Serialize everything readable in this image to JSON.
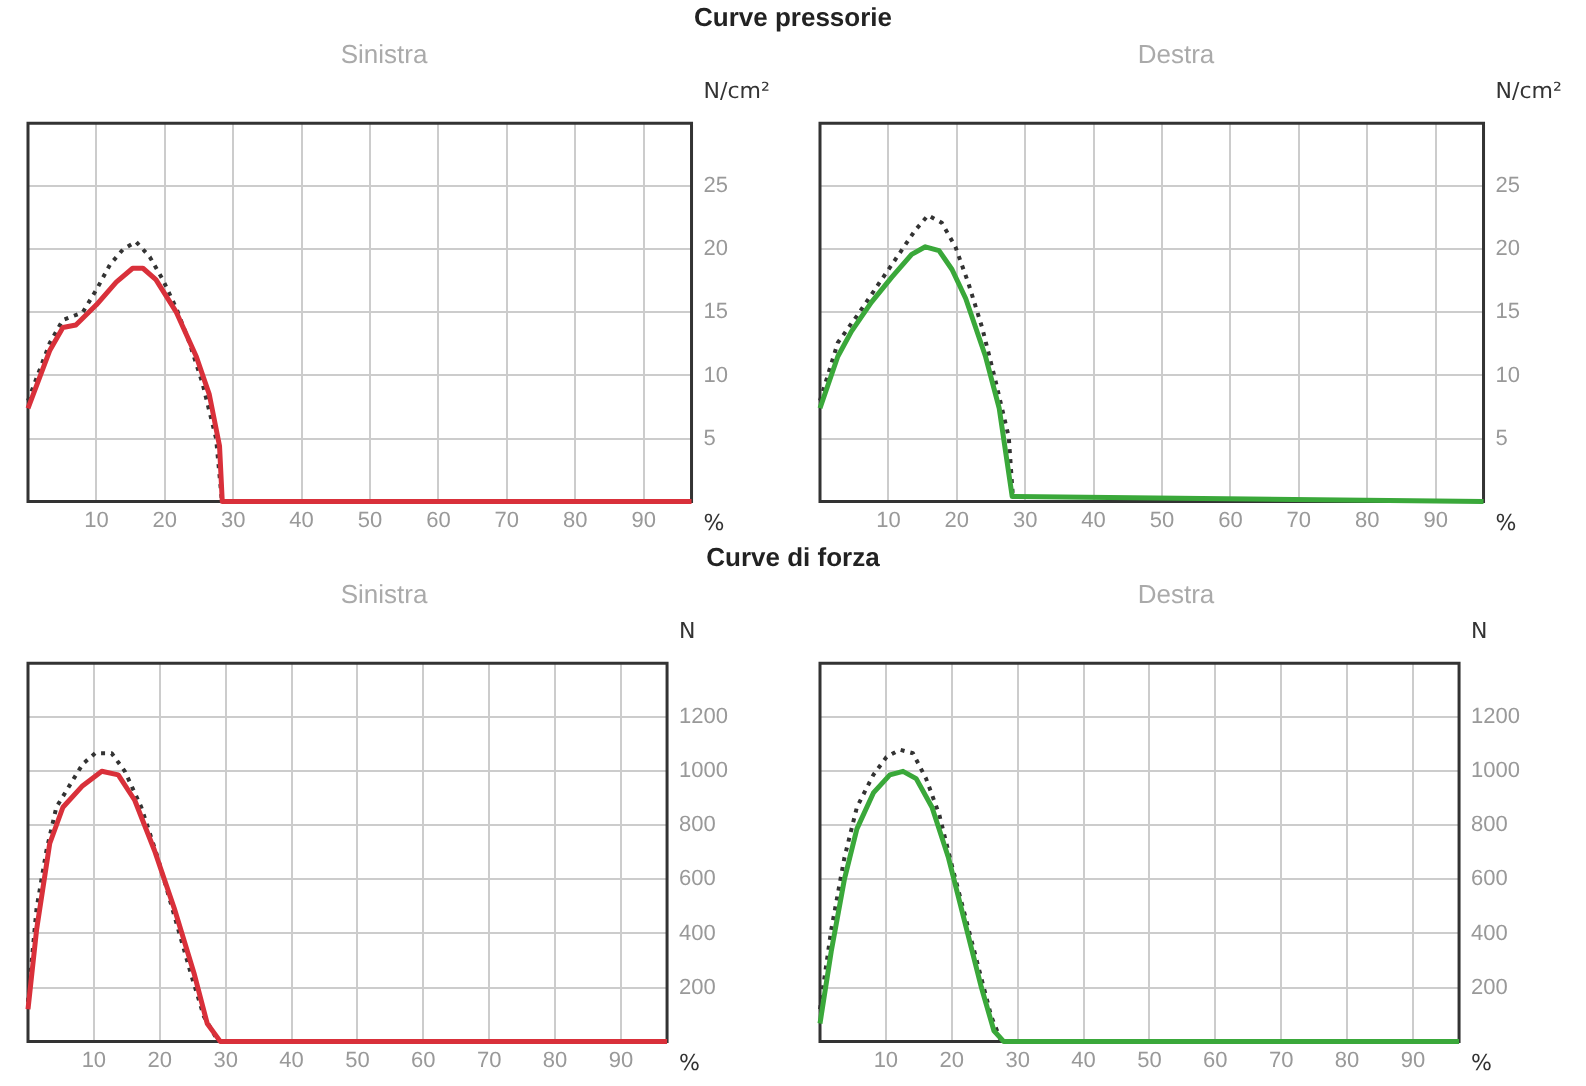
{
  "chart_data": [
    {
      "type": "line",
      "title": "Curve pressorie",
      "subtitle": "Sinistra",
      "xlabel": "%",
      "ylabel": "N/cm²",
      "xlim": [
        0,
        97
      ],
      "xticks": [
        10,
        20,
        30,
        40,
        50,
        60,
        70,
        80,
        90
      ],
      "ylim": [
        0,
        30
      ],
      "yticks": [
        5,
        10,
        15,
        20,
        25
      ],
      "grid": true,
      "legend": false,
      "marker": "none",
      "series": [
        {
          "color": "#d9303a",
          "line_style": "solid",
          "x": [
            0,
            3.2,
            5.1,
            7,
            10,
            12.9,
            15.3,
            16.8,
            18.7,
            21.7,
            24.6,
            26.5,
            28,
            28.4,
            97
          ],
          "values": [
            7.4,
            12,
            13.8,
            14,
            15.6,
            17.4,
            18.5,
            18.5,
            17.6,
            15,
            11.5,
            8.5,
            4.4,
            0,
            0
          ]
        },
        {
          "color": "#333333",
          "line_style": "dotted",
          "x": [
            0,
            3.2,
            5.1,
            8,
            10,
            12,
            13.9,
            15.8,
            17.8,
            19.7,
            21.7,
            23.6,
            25.5,
            27.5,
            28.3
          ],
          "values": [
            8,
            12.6,
            14.4,
            15,
            16.8,
            18.8,
            20,
            20.6,
            19.4,
            17.6,
            15.3,
            12.6,
            9.4,
            5,
            0.3
          ]
        }
      ]
    },
    {
      "type": "line",
      "subtitle": "Destra",
      "xlabel": "%",
      "ylabel": "N/cm²",
      "xlim": [
        0,
        97
      ],
      "xticks": [
        10,
        20,
        30,
        40,
        50,
        60,
        70,
        80,
        90
      ],
      "ylim": [
        0,
        30
      ],
      "yticks": [
        5,
        10,
        15,
        20,
        25
      ],
      "grid": true,
      "legend": false,
      "marker": "none",
      "series": [
        {
          "color": "#3aa83a",
          "line_style": "solid",
          "x": [
            0,
            2.6,
            4.6,
            7.5,
            10.5,
            13.4,
            15.4,
            17.4,
            19.3,
            21.3,
            24.2,
            26.2,
            28.1,
            97
          ],
          "values": [
            7.4,
            11.5,
            13.5,
            15.8,
            17.8,
            19.6,
            20.2,
            19.9,
            18.4,
            16.1,
            11.5,
            7.4,
            0.4,
            0
          ]
        },
        {
          "color": "#333333",
          "line_style": "dotted",
          "x": [
            0,
            2.6,
            5.5,
            8.5,
            11.4,
            13.9,
            15.8,
            17.8,
            19.8,
            21.7,
            23.7,
            25.6,
            27.6,
            28.2
          ],
          "values": [
            8,
            12.6,
            14.8,
            17.2,
            19.5,
            21.5,
            22.7,
            22.1,
            20.2,
            17.3,
            13.8,
            9.7,
            5.1,
            0.4
          ]
        }
      ]
    },
    {
      "type": "line",
      "title": "Curve di forza",
      "subtitle": "Sinistra",
      "xlabel": "%",
      "ylabel": "N",
      "xlim": [
        0,
        97
      ],
      "xticks": [
        10,
        20,
        30,
        40,
        50,
        60,
        70,
        80,
        90
      ],
      "ylim": [
        0,
        1400
      ],
      "yticks": [
        200,
        400,
        600,
        800,
        1000,
        1200
      ],
      "grid": true,
      "legend": false,
      "marker": "none",
      "series": [
        {
          "color": "#d9303a",
          "line_style": "solid",
          "x": [
            0,
            1.3,
            3.3,
            5.3,
            8.3,
            11.2,
            13.7,
            16.2,
            19.2,
            22.2,
            25.2,
            27.2,
            29.2,
            97
          ],
          "values": [
            120,
            413,
            733,
            867,
            947,
            1000,
            987,
            893,
            707,
            493,
            253,
            67,
            0,
            0
          ]
        },
        {
          "color": "#333333",
          "line_style": "dotted",
          "x": [
            0,
            1.3,
            2.8,
            4.3,
            6.3,
            8.3,
            10.2,
            12.7,
            14.7,
            17.2,
            19.7,
            22.2,
            24.7,
            26.7,
            28.7
          ],
          "values": [
            147,
            493,
            707,
            867,
            947,
            1027,
            1067,
            1067,
            1000,
            867,
            680,
            467,
            253,
            93,
            8
          ]
        }
      ]
    },
    {
      "type": "line",
      "subtitle": "Destra",
      "xlabel": "%",
      "ylabel": "N",
      "xlim": [
        0,
        97
      ],
      "xticks": [
        10,
        20,
        30,
        40,
        50,
        60,
        70,
        80,
        90
      ],
      "ylim": [
        0,
        1400
      ],
      "yticks": [
        200,
        400,
        600,
        800,
        1000,
        1200
      ],
      "grid": true,
      "legend": false,
      "marker": "none",
      "series": [
        {
          "color": "#3aa83a",
          "line_style": "solid",
          "x": [
            0,
            1.7,
            3.7,
            5.6,
            8.1,
            10.6,
            12.6,
            14.6,
            17,
            19.5,
            22,
            24.5,
            26.4,
            27.9,
            97
          ],
          "values": [
            67,
            333,
            600,
            787,
            920,
            987,
            1000,
            973,
            867,
            680,
            440,
            200,
            40,
            0,
            0
          ]
        },
        {
          "color": "#333333",
          "line_style": "dotted",
          "x": [
            0,
            1.7,
            3.7,
            5.6,
            8.1,
            10.1,
            12.1,
            14.1,
            16.1,
            18.1,
            20,
            22,
            24,
            26,
            27.4
          ],
          "values": [
            120,
            413,
            680,
            867,
            987,
            1053,
            1080,
            1067,
            973,
            840,
            653,
            467,
            280,
            93,
            8
          ]
        }
      ]
    }
  ]
}
